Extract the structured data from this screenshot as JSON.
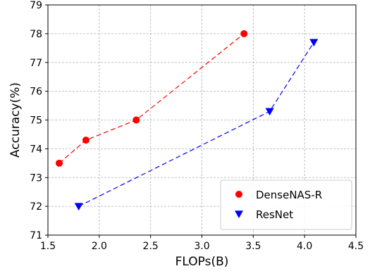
{
  "chart_data": {
    "type": "line",
    "xlabel": "FLOPs(B)",
    "ylabel": "Accuracy(%)",
    "xlim": [
      1.5,
      4.5
    ],
    "ylim": [
      71,
      79
    ],
    "xticks": [
      1.5,
      2.0,
      2.5,
      3.0,
      3.5,
      4.0,
      4.5
    ],
    "xtick_labels": [
      "1.5",
      "2.0",
      "2.5",
      "3.0",
      "3.5",
      "4.0",
      "4.5"
    ],
    "yticks": [
      71,
      72,
      73,
      74,
      75,
      76,
      77,
      78,
      79
    ],
    "ytick_labels": [
      "71",
      "72",
      "73",
      "74",
      "75",
      "76",
      "77",
      "78",
      "79"
    ],
    "grid": true,
    "legend_position": "lower-right",
    "series": [
      {
        "name": "DenseNAS-R",
        "color": "#ff0000",
        "marker": "circle",
        "line_style": "dashed",
        "x": [
          1.61,
          1.87,
          2.36,
          3.41
        ],
        "y": [
          73.5,
          74.3,
          75.0,
          78.0
        ]
      },
      {
        "name": "ResNet",
        "color": "#0000ff",
        "marker": "triangle-down",
        "line_style": "dashed",
        "x": [
          1.8,
          3.66,
          4.09
        ],
        "y": [
          72.0,
          75.3,
          77.7
        ]
      }
    ]
  }
}
